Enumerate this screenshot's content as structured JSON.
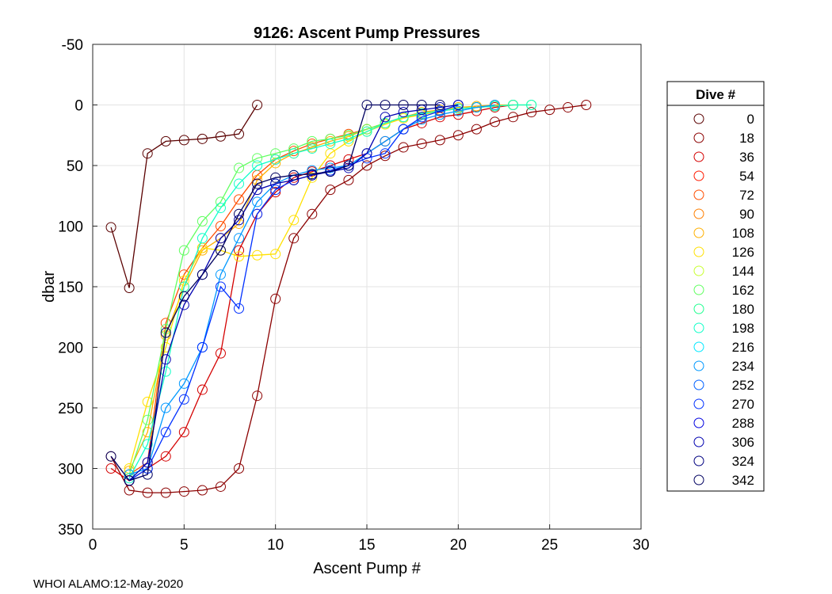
{
  "chart_data": {
    "type": "line",
    "title": "9126: Ascent Pump Pressures",
    "xlabel": "Ascent Pump #",
    "ylabel": "dbar",
    "xlim": [
      0,
      30
    ],
    "ylim": [
      -50,
      350
    ],
    "y_reversed": true,
    "xticks": [
      0,
      5,
      10,
      15,
      20,
      25,
      30
    ],
    "yticks": [
      -50,
      0,
      50,
      100,
      150,
      200,
      250,
      300,
      350
    ],
    "grid": true,
    "legend": {
      "title": "Dive #",
      "placement": "outside-right",
      "entries": [
        {
          "label": "0",
          "color": "#5a0000"
        },
        {
          "label": "18",
          "color": "#8b0000"
        },
        {
          "label": "36",
          "color": "#d40000"
        },
        {
          "label": "54",
          "color": "#ff1a00"
        },
        {
          "label": "72",
          "color": "#ff4d00"
        },
        {
          "label": "90",
          "color": "#ff7f00"
        },
        {
          "label": "108",
          "color": "#ffb000"
        },
        {
          "label": "126",
          "color": "#ffe000"
        },
        {
          "label": "144",
          "color": "#c8ff30"
        },
        {
          "label": "162",
          "color": "#60ff60"
        },
        {
          "label": "180",
          "color": "#20ff90"
        },
        {
          "label": "198",
          "color": "#10ffc8"
        },
        {
          "label": "216",
          "color": "#00e8ff"
        },
        {
          "label": "234",
          "color": "#0098ff"
        },
        {
          "label": "252",
          "color": "#0060ff"
        },
        {
          "label": "270",
          "color": "#0030ff"
        },
        {
          "label": "288",
          "color": "#0000e0"
        },
        {
          "label": "306",
          "color": "#0000b0"
        },
        {
          "label": "324",
          "color": "#000080"
        },
        {
          "label": "342",
          "color": "#000060"
        }
      ]
    },
    "series": [
      {
        "name": "0",
        "color": "#5a0000",
        "x": [
          1,
          2,
          3,
          4,
          5,
          6,
          7,
          8,
          9
        ],
        "y": [
          101,
          151,
          40,
          30,
          29,
          28,
          26,
          24,
          0
        ]
      },
      {
        "name": "18",
        "color": "#8b0000",
        "x": [
          1,
          2,
          3,
          4,
          5,
          6,
          7,
          8,
          9,
          10,
          11,
          12,
          13,
          14,
          15,
          16,
          17,
          18,
          19,
          20,
          21,
          22,
          23,
          24,
          25,
          26,
          27
        ],
        "y": [
          290,
          318,
          320,
          320,
          319,
          318,
          315,
          300,
          240,
          160,
          110,
          90,
          70,
          62,
          50,
          42,
          35,
          32,
          29,
          25,
          20,
          14,
          10,
          6,
          4,
          2,
          0
        ]
      },
      {
        "name": "36",
        "color": "#d40000",
        "x": [
          1,
          2,
          3,
          4,
          5,
          6,
          7,
          8,
          9,
          10,
          11,
          12,
          13,
          14,
          15,
          16,
          17,
          18,
          19,
          20,
          21,
          22,
          23
        ],
        "y": [
          300,
          310,
          300,
          290,
          270,
          235,
          205,
          120,
          90,
          72,
          60,
          55,
          50,
          45,
          40,
          30,
          20,
          15,
          10,
          8,
          5,
          2,
          0
        ]
      },
      {
        "name": "72",
        "color": "#ff4d00",
        "x": [
          2,
          3,
          4,
          5,
          6,
          7,
          8,
          9,
          10,
          11,
          12,
          13,
          14,
          15,
          16,
          17,
          18,
          19,
          20,
          21,
          22,
          23
        ],
        "y": [
          305,
          295,
          180,
          140,
          118,
          100,
          78,
          58,
          45,
          38,
          32,
          28,
          24,
          20,
          15,
          10,
          8,
          5,
          3,
          2,
          1,
          0
        ]
      },
      {
        "name": "108",
        "color": "#ffb000",
        "x": [
          2,
          3,
          4,
          5,
          6,
          7,
          8,
          9,
          10,
          11,
          12,
          13,
          14,
          15,
          16,
          17,
          18,
          19,
          20,
          21,
          22,
          23
        ],
        "y": [
          302,
          270,
          190,
          150,
          120,
          110,
          98,
          62,
          48,
          40,
          35,
          30,
          26,
          20,
          15,
          10,
          6,
          4,
          2,
          1,
          0,
          0
        ]
      },
      {
        "name": "126",
        "color": "#ffe000",
        "x": [
          2,
          3,
          4,
          5,
          6,
          7,
          8,
          9,
          10,
          11,
          12,
          13,
          14,
          15,
          16,
          17,
          18,
          19,
          20,
          21,
          22,
          23,
          24
        ],
        "y": [
          300,
          245,
          200,
          145,
          118,
          120,
          125,
          124,
          123,
          95,
          60,
          40,
          30,
          22,
          16,
          11,
          8,
          5,
          3,
          2,
          1,
          0,
          0
        ]
      },
      {
        "name": "162",
        "color": "#60ff60",
        "x": [
          2,
          3,
          4,
          5,
          6,
          7,
          8,
          9,
          10,
          11,
          12,
          13,
          14,
          15,
          16,
          17,
          18,
          19,
          20,
          21,
          22,
          23,
          24
        ],
        "y": [
          305,
          260,
          185,
          120,
          96,
          80,
          52,
          44,
          40,
          36,
          30,
          28,
          25,
          20,
          15,
          10,
          7,
          5,
          3,
          2,
          1,
          0,
          0
        ]
      },
      {
        "name": "198",
        "color": "#10ffc8",
        "x": [
          2,
          3,
          4,
          5,
          6,
          7,
          8,
          9,
          10,
          11,
          12,
          13,
          14,
          15,
          16,
          17,
          18,
          19,
          20,
          21,
          22,
          23,
          24
        ],
        "y": [
          308,
          280,
          220,
          150,
          110,
          85,
          65,
          50,
          45,
          40,
          36,
          32,
          28,
          22,
          15,
          10,
          7,
          5,
          3,
          2,
          1,
          0,
          0
        ]
      },
      {
        "name": "234",
        "color": "#0098ff",
        "x": [
          2,
          3,
          4,
          5,
          6,
          7,
          8,
          9,
          10,
          11,
          12,
          13,
          14,
          15,
          16,
          17,
          18,
          19,
          20,
          21,
          22
        ],
        "y": [
          305,
          300,
          250,
          230,
          200,
          140,
          110,
          80,
          65,
          58,
          54,
          52,
          50,
          40,
          30,
          20,
          12,
          8,
          5,
          2,
          0
        ]
      },
      {
        "name": "270",
        "color": "#0030ff",
        "x": [
          2,
          3,
          4,
          5,
          6,
          7,
          8,
          9,
          10,
          11,
          12,
          13,
          14,
          15,
          16,
          17,
          18,
          19,
          20
        ],
        "y": [
          310,
          300,
          270,
          243,
          200,
          150,
          168,
          90,
          70,
          62,
          58,
          54,
          50,
          44,
          40,
          20,
          10,
          5,
          0
        ]
      },
      {
        "name": "306",
        "color": "#0000b0",
        "x": [
          2,
          3,
          4,
          5,
          6,
          7,
          8,
          9,
          10,
          11,
          12,
          13,
          14,
          15,
          16,
          17,
          18,
          19,
          20
        ],
        "y": [
          310,
          295,
          210,
          165,
          140,
          110,
          95,
          70,
          65,
          62,
          58,
          55,
          52,
          40,
          10,
          6,
          4,
          2,
          0
        ]
      },
      {
        "name": "342",
        "color": "#000060",
        "x": [
          1,
          2,
          3,
          4,
          5,
          6,
          7,
          8,
          9,
          10,
          11,
          12,
          13,
          14,
          15,
          16,
          17,
          18,
          19
        ],
        "y": [
          290,
          310,
          305,
          188,
          158,
          140,
          120,
          90,
          65,
          60,
          58,
          57,
          55,
          50,
          0,
          0,
          0,
          0,
          0
        ]
      }
    ]
  },
  "footer": "WHOI ALAMO:12-May-2020"
}
